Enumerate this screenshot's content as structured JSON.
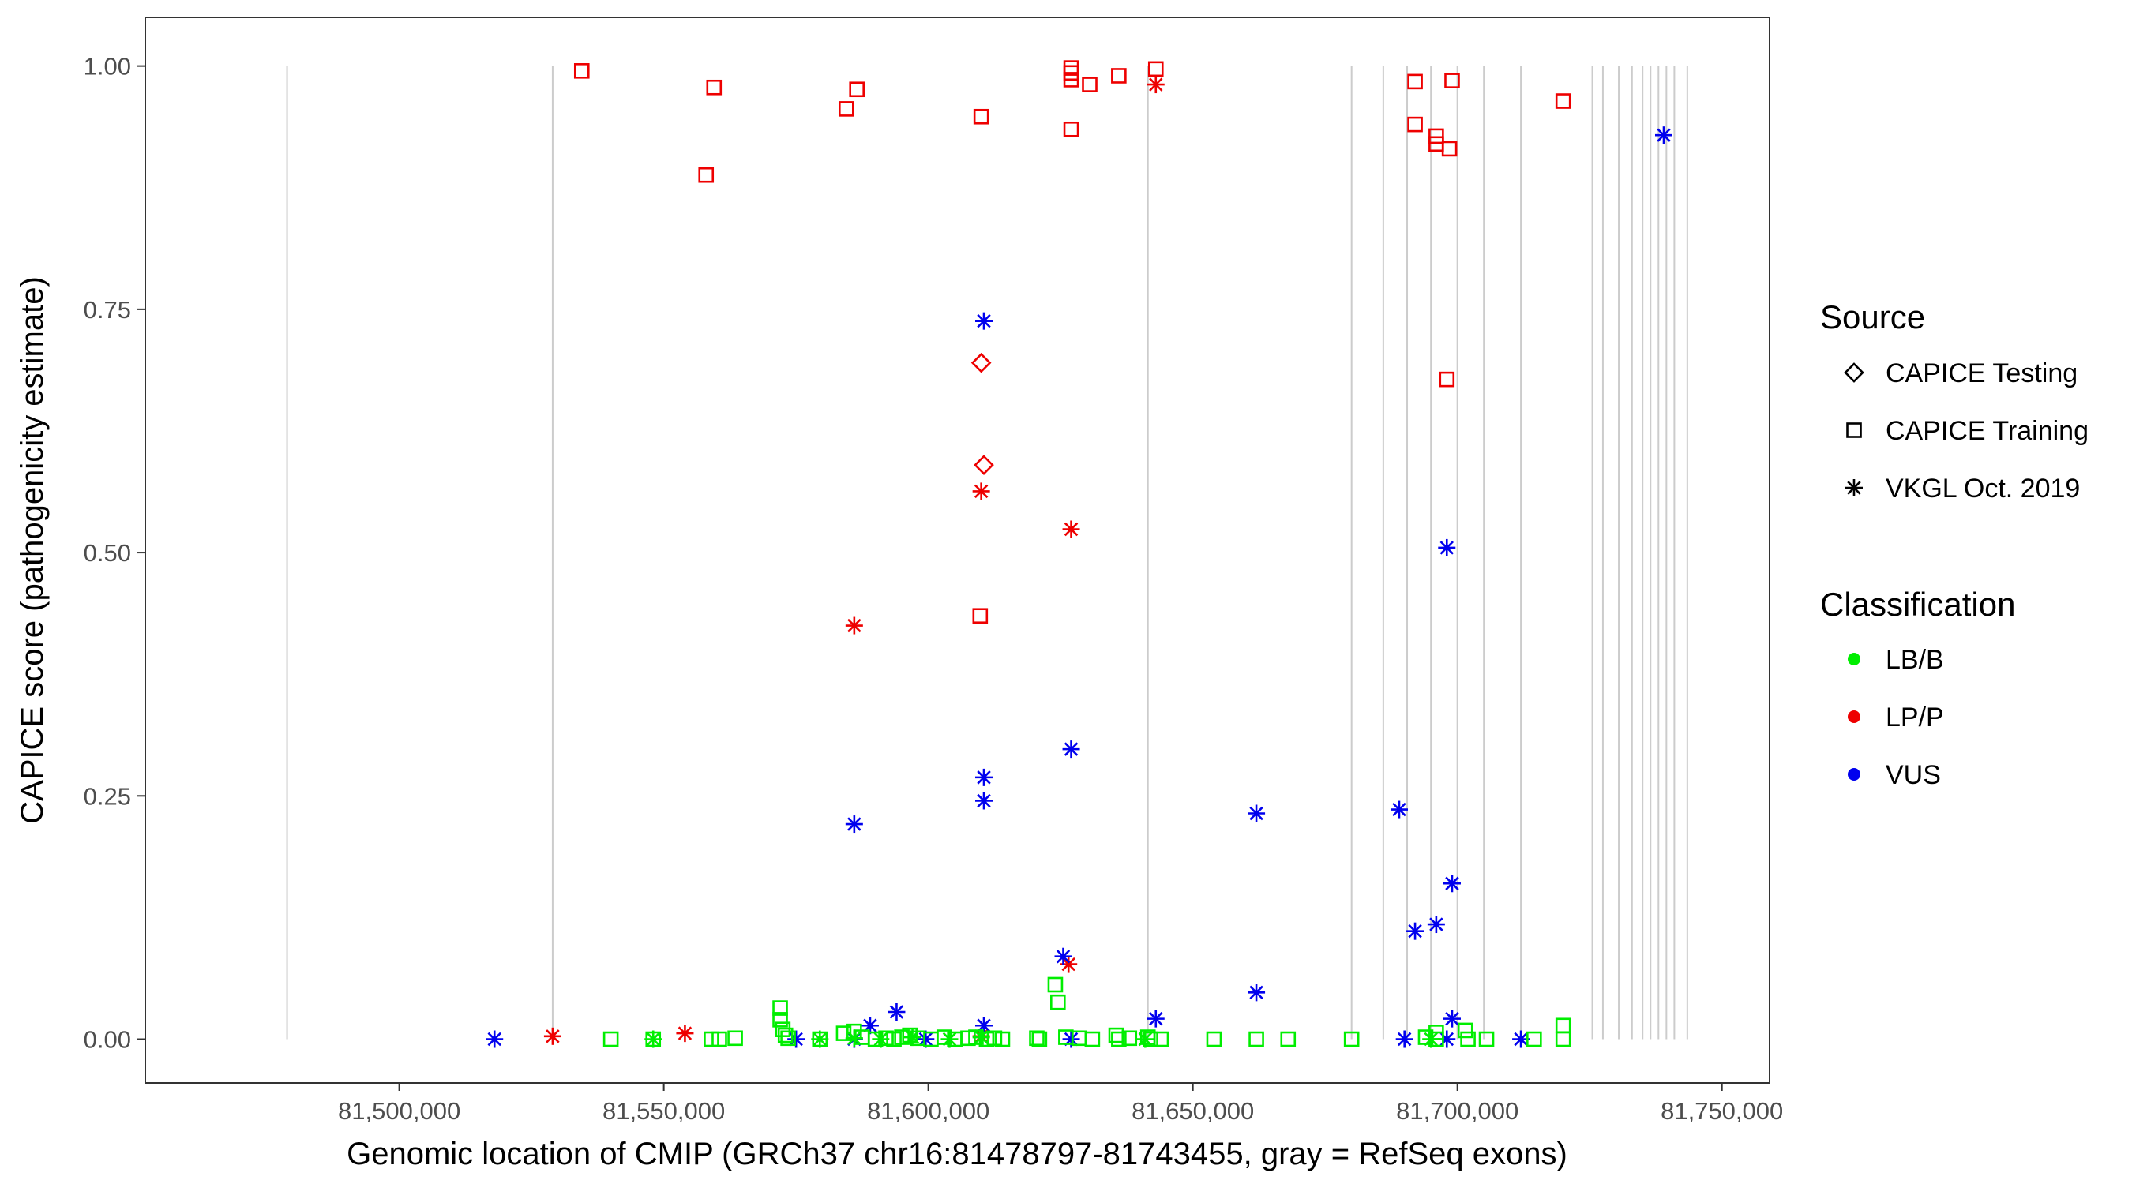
{
  "chart_data": {
    "type": "scatter",
    "xlabel": "Genomic location of CMIP (GRCh37 chr16:81478797-81743455, gray = RefSeq exons)",
    "ylabel": "CAPICE score (pathogenicity estimate)",
    "xlim": [
      81452000,
      81759000
    ],
    "ylim": [
      -0.045,
      1.05
    ],
    "x_ticks": [
      81500000,
      81550000,
      81600000,
      81650000,
      81700000,
      81750000
    ],
    "x_tick_labels": [
      "81,500,000",
      "81,550,000",
      "81,600,000",
      "81,650,000",
      "81,700,000",
      "81,750,000"
    ],
    "y_ticks": [
      0,
      0.25,
      0.5,
      0.75,
      1.0
    ],
    "y_tick_labels": [
      "0.00",
      "0.25",
      "0.50",
      "0.75",
      "1.00"
    ],
    "grid": false,
    "exons": [
      81478797,
      81529000,
      81641500,
      81680000,
      81686000,
      81690500,
      81695000,
      81700000,
      81705000,
      81712000,
      81725500,
      81727500,
      81730500,
      81733000,
      81735000,
      81736500,
      81738000,
      81739500,
      81741000,
      81743455
    ],
    "legend": {
      "position": "right",
      "source_title": "Source",
      "source_items": [
        {
          "label": "CAPICE Testing",
          "shape": "diamond"
        },
        {
          "label": "CAPICE Training",
          "shape": "square"
        },
        {
          "label": "VKGL Oct. 2019",
          "shape": "asterisk"
        }
      ],
      "class_title": "Classification",
      "class_items": [
        {
          "label": "LB/B",
          "color": "#00ee00"
        },
        {
          "label": "LP/P",
          "color": "#ee0000"
        },
        {
          "label": "VUS",
          "color": "#0000ee"
        }
      ]
    },
    "colors": {
      "LB/B": "#00ee00",
      "LP/P": "#ee0000",
      "VUS": "#0000ee",
      "exon": "#cccccc"
    },
    "series": [
      {
        "source": "CAPICE Training",
        "class": "LP/P",
        "x": [
          81534500,
          81559500,
          81558000,
          81584500,
          81586500,
          81610000,
          81609800,
          81627000,
          81627000,
          81627000,
          81627000,
          81630500,
          81636000,
          81643000,
          81692000,
          81692000,
          81696000,
          81696000,
          81698500,
          81698000,
          81699000,
          81720000
        ],
        "y": [
          0.995,
          0.978,
          0.888,
          0.956,
          0.976,
          0.948,
          0.435,
          0.998,
          0.993,
          0.986,
          0.935,
          0.981,
          0.99,
          0.997,
          0.984,
          0.94,
          0.928,
          0.92,
          0.915,
          0.678,
          0.985,
          0.964
        ]
      },
      {
        "source": "CAPICE Testing",
        "class": "LP/P",
        "x": [
          81610000,
          81610500
        ],
        "y": [
          0.695,
          0.59
        ]
      },
      {
        "source": "VKGL Oct. 2019",
        "class": "LP/P",
        "x": [
          81643000,
          81610000,
          81627000,
          81586000,
          81626500,
          81529000,
          81554000,
          81610000
        ],
        "y": [
          0.981,
          0.563,
          0.524,
          0.425,
          0.077,
          0.003,
          0.006,
          0.003
        ]
      },
      {
        "source": "VKGL Oct. 2019",
        "class": "VUS",
        "x": [
          81739000,
          81610500,
          81698000,
          81627000,
          81610500,
          81610500,
          81586000,
          81662000,
          81689000,
          81699000,
          81692000,
          81696000,
          81662000,
          81625500,
          81643000,
          81699000,
          81594000,
          81589000,
          81610500,
          81518000,
          81575000,
          81586000,
          81599500,
          81627000,
          81690000,
          81698000,
          81712000
        ],
        "y": [
          0.929,
          0.738,
          0.505,
          0.298,
          0.269,
          0.245,
          0.221,
          0.232,
          0.236,
          0.16,
          0.111,
          0.118,
          0.048,
          0.085,
          0.021,
          0.021,
          0.028,
          0.014,
          0.014,
          0.0,
          0.0,
          0.0,
          0.0,
          0.0,
          0.0,
          0.0,
          0.0
        ]
      },
      {
        "source": "CAPICE Training",
        "class": "LB/B",
        "x": [
          81540000,
          81548000,
          81559000,
          81560500,
          81563500,
          81572000,
          81572000,
          81572500,
          81573000,
          81573500,
          81579500,
          81584000,
          81586000,
          81587500,
          81590000,
          81592000,
          81593500,
          81595000,
          81596500,
          81598000,
          81600500,
          81603000,
          81605000,
          81607500,
          81609000,
          81611000,
          81612500,
          81614000,
          81620500,
          81621000,
          81624000,
          81624500,
          81626000,
          81628500,
          81631000,
          81635500,
          81636000,
          81638000,
          81641500,
          81642000,
          81644000,
          81654000,
          81662000,
          81668000,
          81680000,
          81694000,
          81696000,
          81696000,
          81701500,
          81702000,
          81705500,
          81714500,
          81720000,
          81720000
        ],
        "y": [
          0.0,
          0.0,
          0.0,
          0.0,
          0.001,
          0.032,
          0.02,
          0.01,
          0.004,
          0.001,
          0.0,
          0.006,
          0.008,
          0.002,
          0.0,
          0.001,
          0.0,
          0.002,
          0.004,
          0.001,
          0.0,
          0.002,
          0.0,
          0.001,
          0.002,
          0.0,
          0.001,
          0.0,
          0.001,
          0.0,
          0.056,
          0.038,
          0.002,
          0.001,
          0.0,
          0.004,
          0.0,
          0.001,
          0.002,
          0.0,
          0.0,
          0.0,
          0.0,
          0.0,
          0.0,
          0.002,
          0.007,
          0.0,
          0.009,
          0.0,
          0.0,
          0.0,
          0.014,
          0.0
        ]
      },
      {
        "source": "VKGL Oct. 2019",
        "class": "LB/B",
        "x": [
          81548000,
          81579500,
          81586000,
          81591000,
          81597000,
          81604000,
          81610000,
          81641000,
          81695000
        ],
        "y": [
          0.0,
          0.0,
          0.001,
          0.0,
          0.002,
          0.0,
          0.002,
          0.0,
          0.0
        ]
      }
    ]
  }
}
